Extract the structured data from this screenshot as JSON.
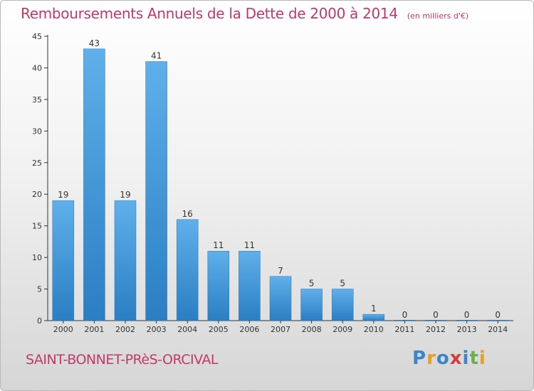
{
  "header": {
    "title": "Remboursements Annuels de la Dette de 2000 à 2014",
    "unit": "(en milliers d'€)"
  },
  "footer": {
    "commune": "SAINT-BONNET-PRèS-ORCIVAL",
    "logo_letters": [
      "P",
      "r",
      "o",
      "x",
      "i",
      "t",
      "i"
    ],
    "logo_colors": [
      "#3a86c8",
      "#e6a020",
      "#3a86c8",
      "#d63c3c",
      "#3a86c8",
      "#6ab04c",
      "#e6a020"
    ]
  },
  "colors": {
    "title": "#c0396a",
    "bar_top": "#5fb0ea",
    "bar_bottom": "#2a7ec2",
    "axis": "#333333"
  },
  "chart_data": {
    "type": "bar",
    "title": "Remboursements Annuels de la Dette de 2000 à 2014",
    "categories": [
      "2000",
      "2001",
      "2002",
      "2003",
      "2004",
      "2005",
      "2006",
      "2007",
      "2008",
      "2009",
      "2010",
      "2011",
      "2012",
      "2013",
      "2014"
    ],
    "values": [
      19,
      43,
      19,
      41,
      16,
      11,
      11,
      7,
      5,
      5,
      1,
      0,
      0,
      0,
      0
    ],
    "ylim": [
      0,
      45
    ],
    "yticks": [
      0,
      5,
      10,
      15,
      20,
      25,
      30,
      35,
      40,
      45
    ],
    "grid": false,
    "data_labels": true
  }
}
